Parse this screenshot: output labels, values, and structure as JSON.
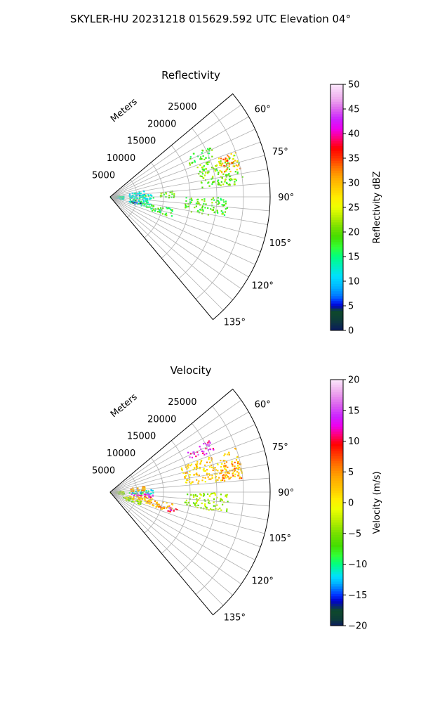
{
  "figure_title": "SKYLER-HU  20231218  015629.592 UTC Elevation 04°",
  "chart_data": [
    {
      "type": "polar-sector-scan",
      "title": "Reflectivity",
      "range_label": "Meters",
      "azimuth_range_deg": [
        50,
        140
      ],
      "range_max_m": 30000,
      "range_ticks": [
        5000,
        10000,
        15000,
        20000,
        25000
      ],
      "range_tick_labels": [
        "5000",
        "10000",
        "15000",
        "20000",
        "25000"
      ],
      "azimuth_ticks": [
        60,
        75,
        90,
        105,
        120,
        135
      ],
      "azimuth_tick_labels": [
        "60°",
        "75°",
        "90°",
        "105°",
        "120°",
        "135°"
      ],
      "grid": true,
      "colorbar": {
        "label": "Reflectivity dBZ",
        "min": 0,
        "max": 50,
        "ticks": [
          0,
          5,
          10,
          15,
          20,
          25,
          30,
          35,
          40,
          45,
          50
        ],
        "tick_labels": [
          "0",
          "5",
          "10",
          "15",
          "20",
          "25",
          "30",
          "35",
          "40",
          "45",
          "50"
        ],
        "stops": [
          {
            "v": 0,
            "c": "#0a1a5e"
          },
          {
            "v": 2,
            "c": "#0d3b3b"
          },
          {
            "v": 4,
            "c": "#0e4a2a"
          },
          {
            "v": 5,
            "c": "#0000cc"
          },
          {
            "v": 6,
            "c": "#0033ff"
          },
          {
            "v": 7,
            "c": "#0077ff"
          },
          {
            "v": 9,
            "c": "#00b8ff"
          },
          {
            "v": 11,
            "c": "#00e0ff"
          },
          {
            "v": 13,
            "c": "#00f0c0"
          },
          {
            "v": 15,
            "c": "#00ff80"
          },
          {
            "v": 17,
            "c": "#33ff33"
          },
          {
            "v": 19,
            "c": "#44dd00"
          },
          {
            "v": 21,
            "c": "#77e000"
          },
          {
            "v": 23,
            "c": "#b8ee00"
          },
          {
            "v": 25,
            "c": "#eeff00"
          },
          {
            "v": 27,
            "c": "#ffee00"
          },
          {
            "v": 29,
            "c": "#ffcc00"
          },
          {
            "v": 31,
            "c": "#ffaa00"
          },
          {
            "v": 33,
            "c": "#ff7700"
          },
          {
            "v": 35,
            "c": "#ff3300"
          },
          {
            "v": 37,
            "c": "#ff0000"
          },
          {
            "v": 39,
            "c": "#ff0077"
          },
          {
            "v": 41,
            "c": "#ee00ee"
          },
          {
            "v": 43,
            "c": "#cc22ff"
          },
          {
            "v": 45,
            "c": "#dd66ee"
          },
          {
            "v": 47,
            "c": "#eeaaee"
          },
          {
            "v": 50,
            "c": "#fbe8fb"
          }
        ]
      },
      "echo_regions": [
        {
          "az": [
            70,
            84
          ],
          "r": [
            17000,
            25000
          ],
          "value": 20
        },
        {
          "az": [
            70,
            78
          ],
          "r": [
            21000,
            25000
          ],
          "value": 30
        },
        {
          "az": [
            71,
            75
          ],
          "r": [
            22000,
            24000
          ],
          "value": 36
        },
        {
          "az": [
            62,
            68
          ],
          "r": [
            16000,
            21000
          ],
          "value": 18
        },
        {
          "az": [
            85,
            106
          ],
          "r": [
            3500,
            8000
          ],
          "value": 14
        },
        {
          "az": [
            78,
            86
          ],
          "r": [
            3500,
            6500
          ],
          "value": 11
        },
        {
          "az": [
            98,
            104
          ],
          "r": [
            3500,
            6000
          ],
          "value": 7
        },
        {
          "az": [
            80,
            100
          ],
          "r": [
            0,
            2500
          ],
          "value": 14
        },
        {
          "az": [
            100,
            108
          ],
          "r": [
            8000,
            12000
          ],
          "value": 18
        },
        {
          "az": [
            90,
            100
          ],
          "r": [
            14000,
            22000
          ],
          "value": 19
        },
        {
          "az": [
            84,
            90
          ],
          "r": [
            9000,
            12000
          ],
          "value": 20
        }
      ]
    },
    {
      "type": "polar-sector-scan",
      "title": "Velocity",
      "range_label": "Meters",
      "azimuth_range_deg": [
        50,
        140
      ],
      "range_max_m": 30000,
      "range_ticks": [
        5000,
        10000,
        15000,
        20000,
        25000
      ],
      "range_tick_labels": [
        "5000",
        "10000",
        "15000",
        "20000",
        "25000"
      ],
      "azimuth_ticks": [
        60,
        75,
        90,
        105,
        120,
        135
      ],
      "azimuth_tick_labels": [
        "60°",
        "75°",
        "90°",
        "105°",
        "120°",
        "135°"
      ],
      "grid": true,
      "colorbar": {
        "label": "Velocity (m/s)",
        "min": -20,
        "max": 20,
        "ticks": [
          -20,
          -15,
          -10,
          -5,
          0,
          5,
          10,
          15,
          20
        ],
        "tick_labels": [
          "−20",
          "−15",
          "−10",
          "−5",
          "0",
          "5",
          "10",
          "15",
          "20"
        ],
        "stops": [
          {
            "v": -20,
            "c": "#0a1a5e"
          },
          {
            "v": -19,
            "c": "#0d3b3b"
          },
          {
            "v": -17.5,
            "c": "#0e4a2a"
          },
          {
            "v": -16,
            "c": "#0000cc"
          },
          {
            "v": -15,
            "c": "#0033ff"
          },
          {
            "v": -14,
            "c": "#0077ff"
          },
          {
            "v": -13,
            "c": "#00b8ff"
          },
          {
            "v": -12,
            "c": "#00e0ff"
          },
          {
            "v": -11,
            "c": "#00f0c0"
          },
          {
            "v": -10,
            "c": "#00ff80"
          },
          {
            "v": -8.5,
            "c": "#33ff33"
          },
          {
            "v": -7,
            "c": "#44dd00"
          },
          {
            "v": -5,
            "c": "#77e000"
          },
          {
            "v": -3,
            "c": "#b8ee00"
          },
          {
            "v": -1,
            "c": "#eeff00"
          },
          {
            "v": 0.5,
            "c": "#ffee00"
          },
          {
            "v": 2,
            "c": "#ffcc00"
          },
          {
            "v": 4,
            "c": "#ffaa00"
          },
          {
            "v": 6,
            "c": "#ff7700"
          },
          {
            "v": 8,
            "c": "#ff3300"
          },
          {
            "v": 9.5,
            "c": "#ff0000"
          },
          {
            "v": 11,
            "c": "#ff0077"
          },
          {
            "v": 12.5,
            "c": "#ee00ee"
          },
          {
            "v": 14,
            "c": "#cc22ff"
          },
          {
            "v": 16,
            "c": "#dd66ee"
          },
          {
            "v": 18,
            "c": "#eeaaee"
          },
          {
            "v": 20,
            "c": "#fbe8fb"
          }
        ]
      },
      "echo_regions": [
        {
          "az": [
            70,
            84
          ],
          "r": [
            14000,
            25000
          ],
          "value": 2
        },
        {
          "az": [
            76,
            84
          ],
          "r": [
            21000,
            25000
          ],
          "value": 5
        },
        {
          "az": [
            62,
            68
          ],
          "r": [
            16000,
            21000
          ],
          "value": 13
        },
        {
          "az": [
            85,
            92
          ],
          "r": [
            3500,
            8000
          ],
          "value": -11
        },
        {
          "az": [
            92,
            97
          ],
          "r": [
            3500,
            8000
          ],
          "value": 13
        },
        {
          "az": [
            97,
            106
          ],
          "r": [
            3500,
            8000
          ],
          "value": 3
        },
        {
          "az": [
            78,
            86
          ],
          "r": [
            3500,
            6500
          ],
          "value": 4
        },
        {
          "az": [
            80,
            100
          ],
          "r": [
            0,
            2500
          ],
          "value": -4
        },
        {
          "az": [
            100,
            108
          ],
          "r": [
            8000,
            12000
          ],
          "value": 4
        },
        {
          "az": [
            104,
            108
          ],
          "r": [
            11000,
            13000
          ],
          "value": 12
        },
        {
          "az": [
            105,
            115
          ],
          "r": [
            2500,
            6000
          ],
          "value": -4
        },
        {
          "az": [
            90,
            100
          ],
          "r": [
            14000,
            22000
          ],
          "value": -4
        }
      ]
    }
  ]
}
